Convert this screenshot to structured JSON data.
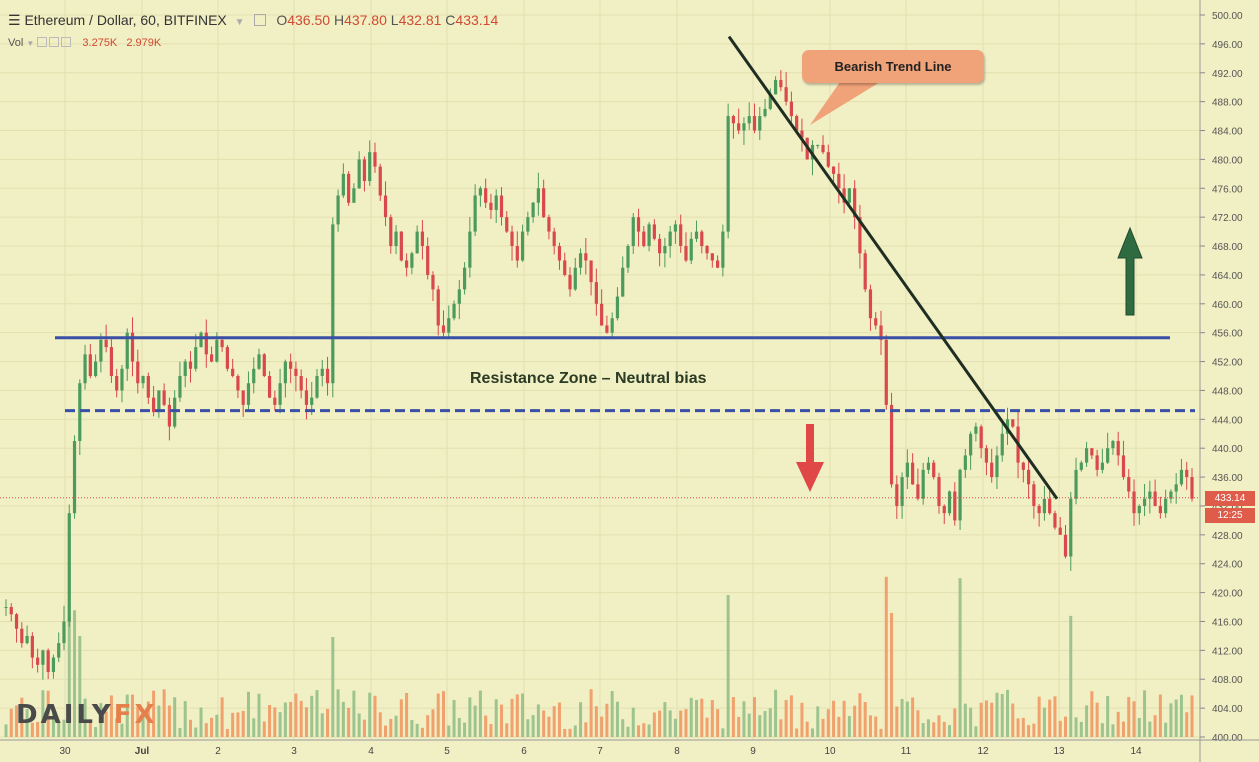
{
  "header": {
    "symbol": "Ethereum / Dollar, 60, BITFINEX",
    "o_label": "O",
    "o_value": "436.50",
    "h_label": "H",
    "h_value": "437.80",
    "l_label": "L",
    "l_value": "432.81",
    "c_label": "C",
    "c_value": "433.14"
  },
  "volume": {
    "label": "Vol",
    "value1": "3.275K",
    "value2": "2.979K"
  },
  "price_tag": "433.14",
  "time_tag": "12:25",
  "annotations": {
    "callout": "Bearish Trend Line",
    "zone": "Resistance  Zone – Neutral bias"
  },
  "logo": {
    "part1": "DAILY",
    "part2": "FX"
  },
  "colors": {
    "background": "#f1efc4",
    "up": "#4c9b5d",
    "down": "#d9484c",
    "vol_up": "#8ebc86",
    "vol_down": "#f0935e",
    "resistance": "#3a4fa6",
    "trend": "#1f2e22",
    "arrow_up": "#2e6b40",
    "arrow_down": "#e04848"
  },
  "chart_data": {
    "type": "candlestick",
    "x_ticks": [
      "30",
      "Jul",
      "2",
      "3",
      "4",
      "5",
      "6",
      "7",
      "8",
      "9",
      "10",
      "11",
      "12",
      "13",
      "14"
    ],
    "y_ticks": [
      "500.00",
      "496.00",
      "492.00",
      "488.00",
      "484.00",
      "480.00",
      "476.00",
      "472.00",
      "468.00",
      "464.00",
      "460.00",
      "456.00",
      "452.00",
      "448.00",
      "444.00",
      "440.00",
      "436.00",
      "432.00",
      "428.00",
      "424.00",
      "420.00",
      "416.00",
      "412.00",
      "408.00",
      "404.00",
      "400.00"
    ],
    "ylim": [
      400,
      500
    ],
    "last_price": 433.14,
    "resistance_upper": 455.3,
    "resistance_lower": 445.2,
    "trendline": [
      {
        "x": "Jul 8 21:00",
        "y": 497.0
      },
      {
        "x": "Jul 12 22:00",
        "y": 433.0
      }
    ],
    "closes_hourly": [
      418,
      417,
      415,
      413,
      414,
      411,
      410,
      412,
      409,
      411,
      413,
      416,
      431,
      441,
      449,
      453,
      450,
      452,
      455,
      454,
      450,
      448,
      451,
      456,
      452,
      449,
      450,
      447,
      445,
      448,
      446,
      443,
      447,
      450,
      452,
      451,
      454,
      456,
      453,
      452,
      455,
      454,
      451,
      450,
      448,
      446,
      449,
      451,
      453,
      450,
      447,
      446,
      449,
      452,
      451,
      450,
      448,
      446,
      447,
      450,
      451,
      449,
      471,
      475,
      478,
      474,
      476,
      480,
      477,
      481,
      479,
      475,
      472,
      468,
      470,
      466,
      465,
      467,
      470,
      468,
      464,
      462,
      457,
      456,
      458,
      460,
      462,
      465,
      470,
      475,
      476,
      474,
      473,
      475,
      472,
      470,
      468,
      466,
      470,
      472,
      474,
      476,
      472,
      470,
      468,
      466,
      464,
      462,
      465,
      467,
      466,
      463,
      460,
      457,
      456,
      458,
      461,
      465,
      468,
      472,
      470,
      468,
      471,
      469,
      467,
      468,
      470,
      471,
      468,
      466,
      469,
      470,
      468,
      467,
      466,
      465,
      470,
      486,
      485,
      484,
      485,
      486,
      484,
      486,
      487,
      489,
      491,
      490,
      488,
      486,
      484,
      483,
      480,
      482,
      482,
      481,
      479,
      478,
      476,
      474,
      476,
      472,
      467,
      462,
      458,
      457,
      455,
      446,
      435,
      432,
      436,
      438,
      435,
      433,
      437,
      438,
      436,
      432,
      431,
      434,
      430,
      437,
      439,
      442,
      443,
      440,
      438,
      436,
      439,
      442,
      444,
      443,
      438,
      437,
      435,
      432,
      431,
      433,
      431,
      429,
      428,
      425,
      433,
      437,
      438,
      440,
      439,
      437,
      438,
      440,
      441,
      439,
      436,
      434,
      431,
      432,
      433,
      434,
      432,
      431,
      433,
      434,
      435,
      437,
      436,
      433
    ],
    "volume_note": "per-bar volume histogram along bottom"
  }
}
